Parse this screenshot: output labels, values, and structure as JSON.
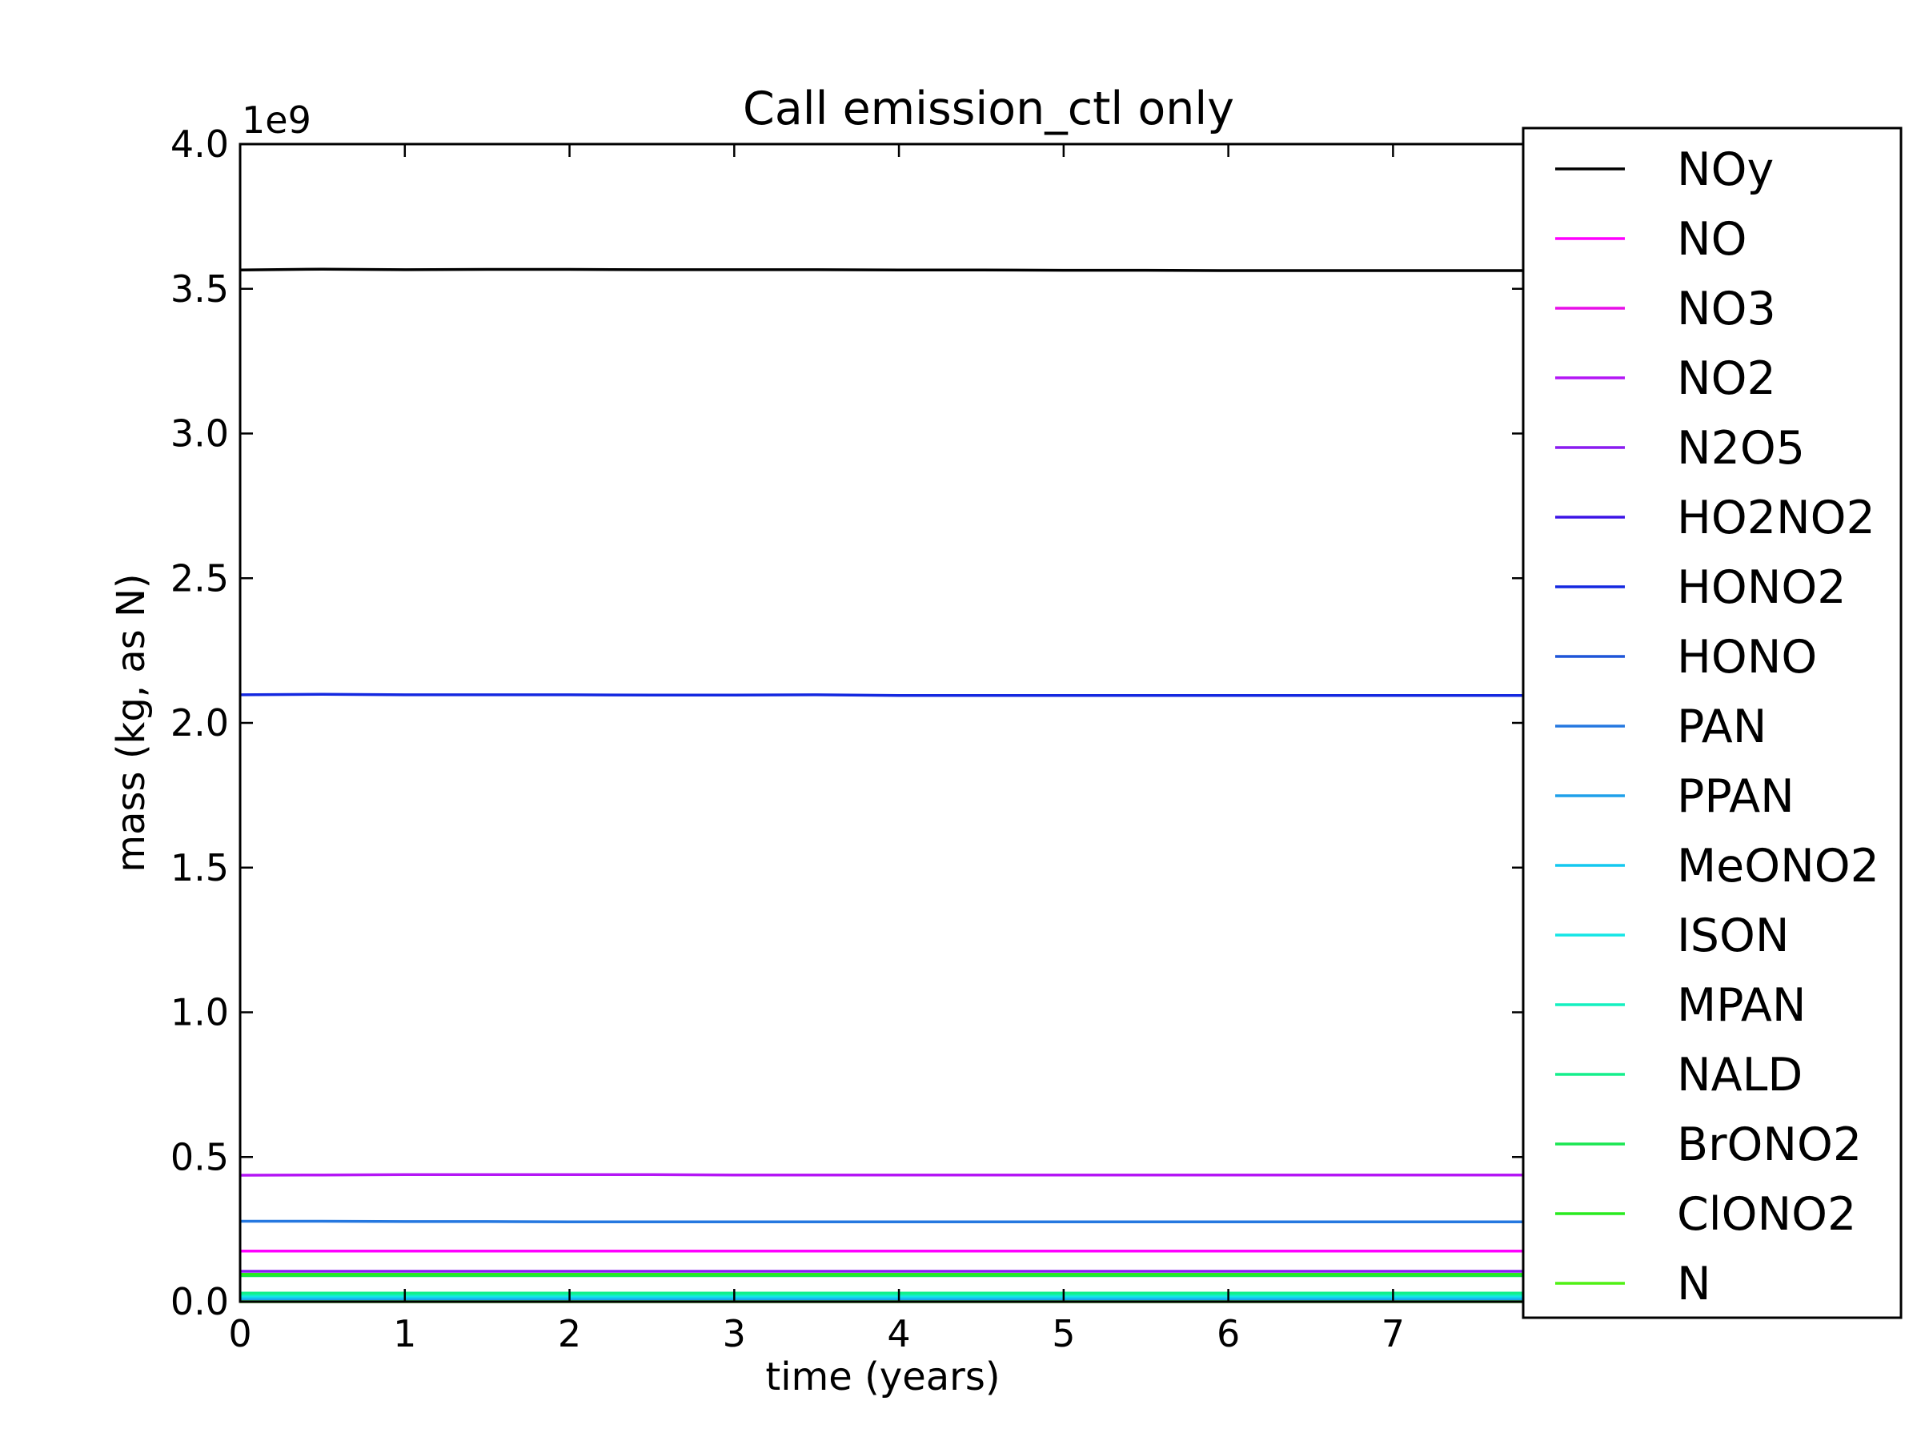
{
  "chart_data": {
    "type": "line",
    "title": "Call emission_ctl only",
    "xlabel": "time (years)",
    "ylabel": "mass (kg, as N)",
    "y_offset_label": "1e9",
    "xlim": [
      0,
      7.8
    ],
    "ylim": [
      0,
      4.0
    ],
    "x_ticks": [
      "0",
      "1",
      "2",
      "3",
      "4",
      "5",
      "6",
      "7"
    ],
    "y_ticks": [
      "0.0",
      "0.5",
      "1.0",
      "1.5",
      "2.0",
      "2.5",
      "3.0",
      "3.5",
      "4.0"
    ],
    "grid": false,
    "legend_placement": "right, overlapping plot",
    "x": [
      0,
      0.5,
      1,
      1.5,
      2,
      2.5,
      3,
      3.5,
      4,
      4.5,
      5,
      5.5,
      6,
      6.5,
      7,
      7.5,
      7.8
    ],
    "series": [
      {
        "name": "NOy",
        "color": "#000000",
        "values": [
          3.565,
          3.568,
          3.566,
          3.567,
          3.567,
          3.566,
          3.566,
          3.566,
          3.565,
          3.565,
          3.564,
          3.564,
          3.563,
          3.563,
          3.563,
          3.563,
          3.563
        ]
      },
      {
        "name": "NO",
        "color": "#ff00ff",
        "values": [
          0.175,
          0.175,
          0.175,
          0.175,
          0.175,
          0.175,
          0.175,
          0.175,
          0.175,
          0.175,
          0.175,
          0.175,
          0.175,
          0.175,
          0.175,
          0.175,
          0.175
        ]
      },
      {
        "name": "NO3",
        "color": "#e80fe8",
        "values": [
          0.003,
          0.003,
          0.003,
          0.003,
          0.003,
          0.003,
          0.003,
          0.003,
          0.003,
          0.003,
          0.003,
          0.003,
          0.003,
          0.003,
          0.003,
          0.003,
          0.003
        ]
      },
      {
        "name": "NO2",
        "color": "#b416f5",
        "values": [
          0.437,
          0.438,
          0.439,
          0.439,
          0.439,
          0.439,
          0.438,
          0.438,
          0.438,
          0.438,
          0.438,
          0.438,
          0.438,
          0.438,
          0.438,
          0.438,
          0.438
        ]
      },
      {
        "name": "N2O5",
        "color": "#8a1cf0",
        "values": [
          0.105,
          0.105,
          0.105,
          0.105,
          0.105,
          0.105,
          0.105,
          0.105,
          0.105,
          0.105,
          0.105,
          0.105,
          0.105,
          0.105,
          0.105,
          0.105,
          0.105
        ]
      },
      {
        "name": "HO2NO2",
        "color": "#3c14e6",
        "values": [
          0.012,
          0.012,
          0.012,
          0.012,
          0.012,
          0.012,
          0.012,
          0.012,
          0.012,
          0.012,
          0.012,
          0.012,
          0.012,
          0.012,
          0.012,
          0.012,
          0.012
        ]
      },
      {
        "name": "HONO2",
        "color": "#1428e0",
        "values": [
          2.097,
          2.099,
          2.097,
          2.097,
          2.097,
          2.096,
          2.096,
          2.097,
          2.095,
          2.095,
          2.095,
          2.095,
          2.095,
          2.095,
          2.095,
          2.095,
          2.095
        ]
      },
      {
        "name": "HONO",
        "color": "#1e55d8",
        "values": [
          0.004,
          0.004,
          0.004,
          0.004,
          0.004,
          0.004,
          0.004,
          0.004,
          0.004,
          0.004,
          0.004,
          0.004,
          0.004,
          0.004,
          0.004,
          0.004,
          0.004
        ]
      },
      {
        "name": "PAN",
        "color": "#2578e0",
        "values": [
          0.278,
          0.278,
          0.277,
          0.277,
          0.276,
          0.276,
          0.276,
          0.276,
          0.276,
          0.276,
          0.276,
          0.276,
          0.276,
          0.276,
          0.276,
          0.276,
          0.276
        ]
      },
      {
        "name": "PPAN",
        "color": "#1ea0ea",
        "values": [
          0.008,
          0.008,
          0.008,
          0.008,
          0.008,
          0.008,
          0.008,
          0.008,
          0.008,
          0.008,
          0.008,
          0.008,
          0.008,
          0.008,
          0.008,
          0.008,
          0.008
        ]
      },
      {
        "name": "MeONO2",
        "color": "#14c8f0",
        "values": [
          0.015,
          0.015,
          0.015,
          0.015,
          0.015,
          0.015,
          0.015,
          0.015,
          0.015,
          0.015,
          0.015,
          0.015,
          0.015,
          0.015,
          0.015,
          0.015,
          0.015
        ]
      },
      {
        "name": "ISON",
        "color": "#14e6e6",
        "values": [
          0.02,
          0.02,
          0.02,
          0.02,
          0.02,
          0.02,
          0.02,
          0.02,
          0.02,
          0.02,
          0.02,
          0.02,
          0.02,
          0.02,
          0.02,
          0.02,
          0.02
        ]
      },
      {
        "name": "MPAN",
        "color": "#14f0c0",
        "values": [
          0.025,
          0.025,
          0.025,
          0.025,
          0.025,
          0.025,
          0.025,
          0.025,
          0.025,
          0.025,
          0.025,
          0.025,
          0.025,
          0.025,
          0.025,
          0.025,
          0.025
        ]
      },
      {
        "name": "NALD",
        "color": "#14ef8c",
        "values": [
          0.03,
          0.03,
          0.03,
          0.03,
          0.03,
          0.03,
          0.03,
          0.03,
          0.03,
          0.03,
          0.03,
          0.03,
          0.03,
          0.03,
          0.03,
          0.03,
          0.03
        ]
      },
      {
        "name": "BrONO2",
        "color": "#19e650",
        "values": [
          0.09,
          0.09,
          0.09,
          0.09,
          0.09,
          0.09,
          0.09,
          0.09,
          0.09,
          0.09,
          0.09,
          0.09,
          0.09,
          0.09,
          0.09,
          0.09,
          0.09
        ]
      },
      {
        "name": "ClONO2",
        "color": "#28ea1e",
        "values": [
          0.095,
          0.095,
          0.095,
          0.095,
          0.095,
          0.095,
          0.095,
          0.095,
          0.095,
          0.095,
          0.095,
          0.095,
          0.095,
          0.095,
          0.095,
          0.095,
          0.095
        ]
      },
      {
        "name": "N",
        "color": "#50f014",
        "values": [
          0.0,
          0.0,
          0.0,
          0.0,
          0.0,
          0.0,
          0.0,
          0.0,
          0.0,
          0.0,
          0.0,
          0.0,
          0.0,
          0.0,
          0.0,
          0.0,
          0.0
        ]
      }
    ]
  }
}
